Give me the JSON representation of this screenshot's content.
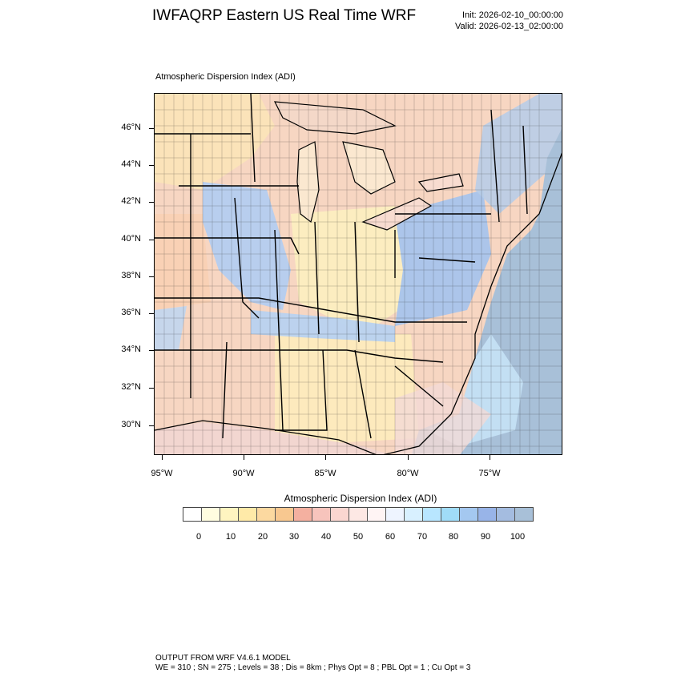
{
  "header": {
    "title": "IWFAQRP Eastern US Real Time WRF",
    "init": "Init: 2026-02-10_00:00:00",
    "valid": "Valid: 2026-02-13_02:00:00"
  },
  "plot": {
    "field_label": "Atmospheric Dispersion Index   (ADI)",
    "lat_labels": [
      "46°N",
      "44°N",
      "42°N",
      "40°N",
      "38°N",
      "36°N",
      "34°N",
      "32°N",
      "30°N"
    ],
    "lon_labels": [
      "95°W",
      "90°W",
      "85°W",
      "80°W",
      "75°W"
    ]
  },
  "colorbar": {
    "title": "Atmospheric Dispersion Index  (ADI)",
    "tick_labels": [
      "0",
      "10",
      "20",
      "30",
      "40",
      "50",
      "60",
      "70",
      "80",
      "90",
      "100"
    ],
    "colors": [
      "#ffffff",
      "#fffde0",
      "#fff5c0",
      "#ffeaa8",
      "#fcd9a0",
      "#f8c890",
      "#f4b0a0",
      "#f7c4bc",
      "#fad6d0",
      "#fde8e4",
      "#fff4f4",
      "#eef4ff",
      "#d8f0ff",
      "#b8e6ff",
      "#a0dcf8",
      "#a4c8f0",
      "#98b4e8",
      "#a4bce0",
      "#a8c0d8"
    ]
  },
  "footer": {
    "line1": "OUTPUT FROM WRF V4.6.1 MODEL",
    "line2": "WE = 310 ; SN = 275 ; Levels = 38 ; Dis = 8km ; Phys Opt = 8 ; PBL Opt = 1 ; Cu Opt = 3"
  }
}
